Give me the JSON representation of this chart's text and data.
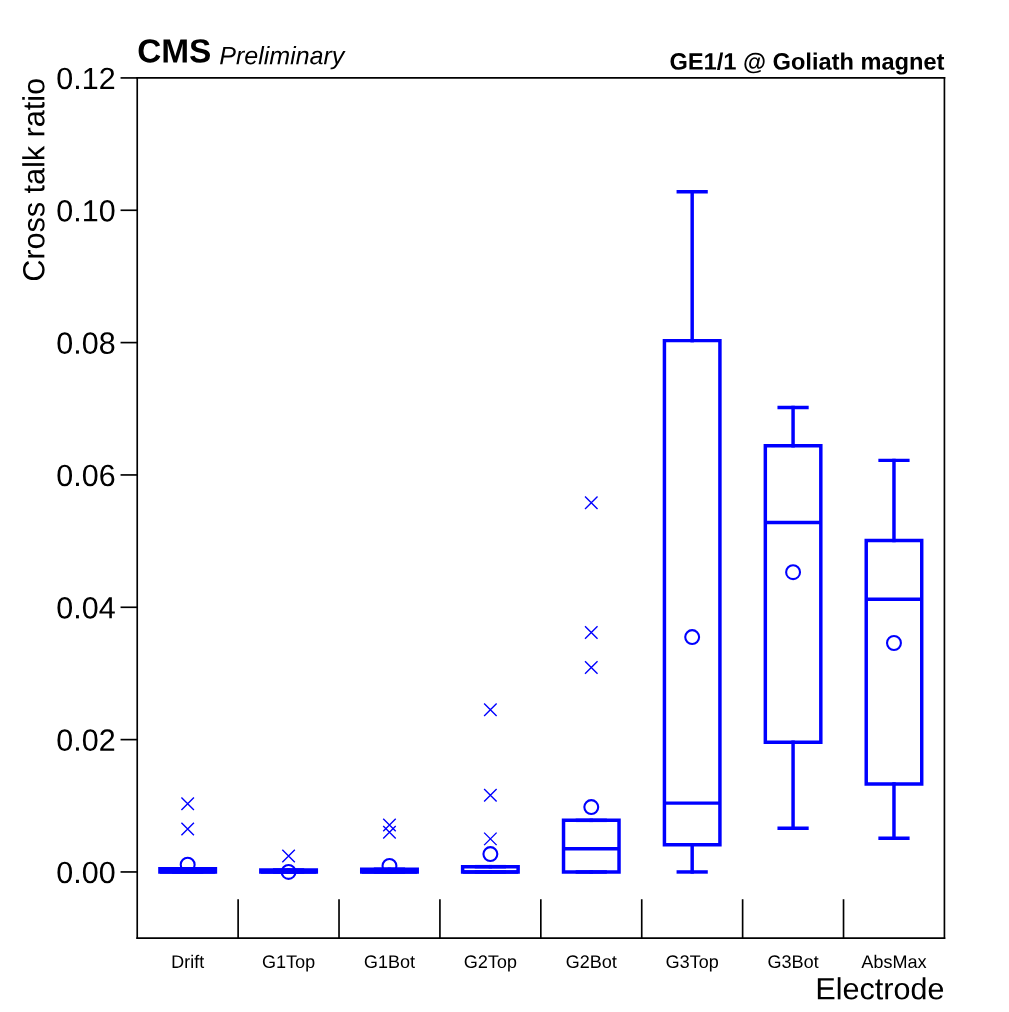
{
  "chart_data": {
    "type": "box",
    "title": "GE1/1 @ Goliath magnet",
    "xlabel": "Electrode",
    "ylabel": "Cross talk ratio",
    "annotations": [
      "CMS",
      "Preliminary"
    ],
    "categories": [
      "Drift",
      "G1Top",
      "G1Bot",
      "G2Top",
      "G2Bot",
      "G3Top",
      "G3Bot",
      "AbsMax"
    ],
    "color": "#0000ff",
    "boxes": [
      {
        "low": 0.0,
        "q1": 0.0,
        "median": 0.0,
        "q3": 0.0005,
        "high": 0.0005,
        "mean": 0.0011,
        "outliers": [
          0.0103,
          0.0065
        ]
      },
      {
        "low": 0.0,
        "q1": 0.0,
        "median": 0.0,
        "q3": 0.0003,
        "high": 0.0003,
        "mean": 0.0,
        "outliers": [
          0.0024
        ]
      },
      {
        "low": 0.0,
        "q1": 0.0,
        "median": 0.0,
        "q3": 0.0004,
        "high": 0.0004,
        "mean": 0.0009,
        "outliers": [
          0.0071,
          0.006
        ]
      },
      {
        "low": 0.0,
        "q1": 0.0,
        "median": 0.0,
        "q3": 0.0008,
        "high": 0.0008,
        "mean": 0.0027,
        "outliers": [
          0.0245,
          0.0116,
          0.005
        ]
      },
      {
        "low": 0.0,
        "q1": 0.0,
        "median": 0.0035,
        "q3": 0.0078,
        "high": 0.0078,
        "mean": 0.0098,
        "outliers": [
          0.0558,
          0.0362,
          0.0309
        ]
      },
      {
        "low": 0.0,
        "q1": 0.0041,
        "median": 0.0104,
        "q3": 0.0803,
        "high": 0.1028,
        "mean": 0.0355
      },
      {
        "low": 0.0066,
        "q1": 0.0196,
        "median": 0.0528,
        "q3": 0.0644,
        "high": 0.0702,
        "mean": 0.0453
      },
      {
        "low": 0.0051,
        "q1": 0.0133,
        "median": 0.0412,
        "q3": 0.0501,
        "high": 0.0622,
        "mean": 0.0346
      }
    ],
    "ylim": [
      -0.01,
      0.12
    ],
    "yticks": [
      {
        "value": 0.0,
        "label": "0.00"
      },
      {
        "value": 0.02,
        "label": "0.02"
      },
      {
        "value": 0.04,
        "label": "0.04"
      },
      {
        "value": 0.06,
        "label": "0.06"
      },
      {
        "value": 0.08,
        "label": "0.08"
      },
      {
        "value": 0.1,
        "label": "0.10"
      },
      {
        "value": 0.12,
        "label": "0.12"
      }
    ],
    "grid": false,
    "legend": false
  }
}
